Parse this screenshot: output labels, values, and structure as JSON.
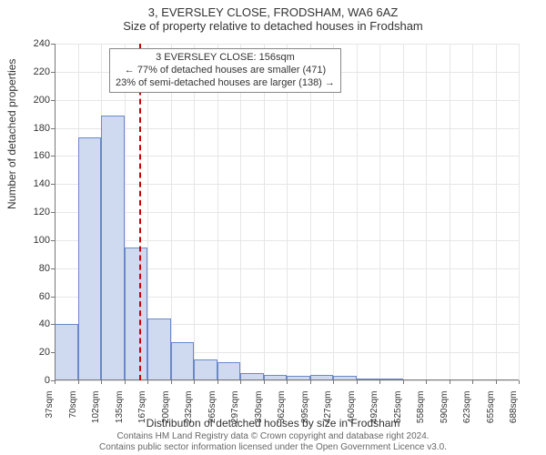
{
  "title": "3, EVERSLEY CLOSE, FRODSHAM, WA6 6AZ",
  "subtitle": "Size of property relative to detached houses in Frodsham",
  "y_axis_title": "Number of detached properties",
  "x_axis_title": "Distribution of detached houses by size in Frodsham",
  "footer_line1": "Contains HM Land Registry data © Crown copyright and database right 2024.",
  "footer_line2": "Contains public sector information licensed under the Open Government Licence v3.0.",
  "chart": {
    "type": "histogram",
    "ylim": [
      0,
      240
    ],
    "ytick_step": 20,
    "bar_fill": "#cfdaf0",
    "bar_stroke": "#6a89c8",
    "grid_color": "#e6e6e6",
    "background_color": "#ffffff",
    "axis_color": "#777777",
    "marker_color": "#cc0000",
    "marker_x_value": 156,
    "x_start": 37,
    "x_step": 32.5,
    "x_tick_labels": [
      "37sqm",
      "70sqm",
      "102sqm",
      "135sqm",
      "167sqm",
      "200sqm",
      "232sqm",
      "265sqm",
      "297sqm",
      "330sqm",
      "362sqm",
      "395sqm",
      "427sqm",
      "460sqm",
      "492sqm",
      "525sqm",
      "558sqm",
      "590sqm",
      "623sqm",
      "655sqm",
      "688sqm"
    ],
    "values": [
      40,
      173,
      189,
      95,
      44,
      27,
      15,
      13,
      5,
      4,
      3,
      4,
      3,
      1,
      1,
      0,
      0,
      0,
      0,
      0
    ],
    "annotation": {
      "line1": "3 EVERSLEY CLOSE: 156sqm",
      "line2": "← 77% of detached houses are smaller (471)",
      "line3": "23% of semi-detached houses are larger (138) →"
    }
  }
}
